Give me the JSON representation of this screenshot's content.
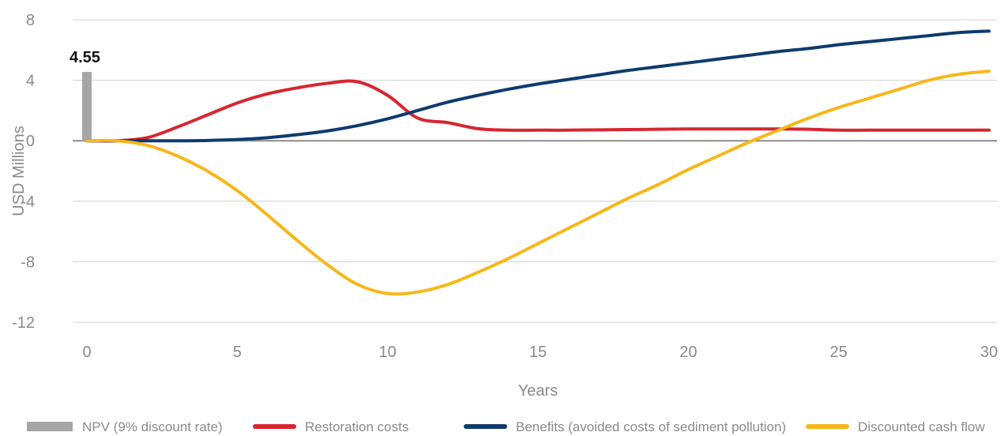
{
  "chart_data": {
    "type": "line",
    "xlabel": "Years",
    "ylabel": "USD Millions",
    "xlim": [
      0,
      30
    ],
    "ylim": [
      -12,
      8
    ],
    "x_ticks": [
      0,
      5,
      10,
      15,
      20,
      25,
      30
    ],
    "y_ticks": [
      8,
      4,
      0,
      -4,
      -8,
      -12
    ],
    "grid": "horizontal",
    "legend_position": "bottom",
    "npv_bar": {
      "name": "NPV (9% discount rate)",
      "x": 0,
      "value": 4.55,
      "label": "4.55",
      "color": "#a6a6a6"
    },
    "series": [
      {
        "name": "Restoration costs",
        "color": "#d7262e",
        "x": [
          0,
          1,
          2,
          3,
          4,
          5,
          6,
          7,
          8,
          9,
          10,
          11,
          12,
          13,
          14,
          15,
          16,
          17,
          18,
          19,
          20,
          21,
          22,
          23,
          24,
          25,
          26,
          27,
          28,
          29,
          30
        ],
        "values": [
          0,
          0,
          0.2,
          0.9,
          1.7,
          2.5,
          3.1,
          3.5,
          3.8,
          3.9,
          3.0,
          1.5,
          1.2,
          0.8,
          0.7,
          0.7,
          0.7,
          0.72,
          0.74,
          0.76,
          0.78,
          0.78,
          0.78,
          0.78,
          0.76,
          0.7,
          0.7,
          0.7,
          0.7,
          0.7,
          0.7
        ]
      },
      {
        "name": "Benefits (avoided costs of sediment pollution)",
        "color": "#0d3b6e",
        "x": [
          0,
          1,
          2,
          3,
          4,
          5,
          6,
          7,
          8,
          9,
          10,
          11,
          12,
          13,
          14,
          15,
          16,
          17,
          18,
          19,
          20,
          21,
          22,
          23,
          24,
          25,
          26,
          27,
          28,
          29,
          30
        ],
        "values": [
          0,
          0,
          0,
          0,
          0.02,
          0.08,
          0.2,
          0.4,
          0.65,
          1.0,
          1.45,
          2.0,
          2.55,
          3.0,
          3.4,
          3.75,
          4.05,
          4.35,
          4.65,
          4.9,
          5.15,
          5.4,
          5.65,
          5.9,
          6.1,
          6.35,
          6.55,
          6.75,
          6.95,
          7.15,
          7.25
        ]
      },
      {
        "name": "Discounted cash flow",
        "color": "#f7b719",
        "x": [
          0,
          1,
          2,
          3,
          4,
          5,
          6,
          7,
          8,
          9,
          10,
          11,
          12,
          13,
          14,
          15,
          16,
          17,
          18,
          19,
          20,
          21,
          22,
          23,
          24,
          25,
          26,
          27,
          28,
          29,
          30
        ],
        "values": [
          0,
          0,
          -0.3,
          -1.0,
          -2.0,
          -3.3,
          -4.9,
          -6.6,
          -8.2,
          -9.5,
          -10.1,
          -10.0,
          -9.5,
          -8.7,
          -7.8,
          -6.8,
          -5.8,
          -4.8,
          -3.8,
          -2.9,
          -1.9,
          -1.0,
          -0.1,
          0.7,
          1.5,
          2.2,
          2.8,
          3.4,
          4.0,
          4.4,
          4.6
        ]
      }
    ]
  }
}
